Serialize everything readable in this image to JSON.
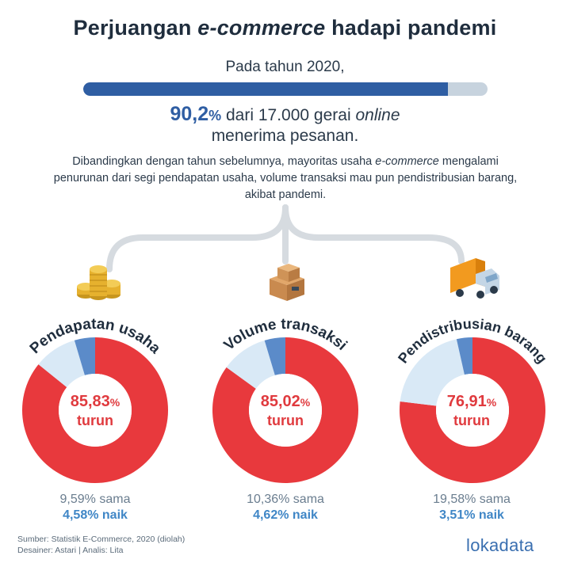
{
  "header": {
    "title_part1": "Perjuangan",
    "title_italic": "e-commerce",
    "title_part2": "hadapi pandemi"
  },
  "intro": {
    "year_text": "Pada tahun 2020,",
    "progress_percent": 90.2,
    "stat_value": "90,2",
    "stat_unit": "%",
    "stat_text": "dari 17.000 gerai",
    "stat_italic": "online",
    "stat_line2": "menerima pesanan."
  },
  "description": {
    "part1": "Dibandingkan dengan tahun sebelumnya, mayoritas usaha",
    "italic": "e-commerce",
    "part2": "mengalami penurunan dari segi pendapatan usaha, volume transaksi mau pun pendistribusian barang, akibat pandemi."
  },
  "colors": {
    "turun": "#e8393d",
    "sama": "#d9e9f6",
    "naik": "#5b8bc9",
    "dark_blue": "#2f5ea3",
    "connector": "#d6dbe0"
  },
  "chart_data": [
    {
      "type": "pie",
      "title": "Pendapatan usaha",
      "icon": "coins-icon",
      "center_value": "85,83",
      "center_unit": "%",
      "center_label": "turun",
      "slices": [
        {
          "label": "turun",
          "value": 85.83
        },
        {
          "label": "sama",
          "value": 9.59
        },
        {
          "label": "naik",
          "value": 4.58
        }
      ],
      "sama_text": "9,59% sama",
      "naik_text": "4,58% naik"
    },
    {
      "type": "pie",
      "title": "Volume transaksi",
      "icon": "boxes-icon",
      "center_value": "85,02",
      "center_unit": "%",
      "center_label": "turun",
      "slices": [
        {
          "label": "turun",
          "value": 85.02
        },
        {
          "label": "sama",
          "value": 10.36
        },
        {
          "label": "naik",
          "value": 4.62
        }
      ],
      "sama_text": "10,36% sama",
      "naik_text": "4,62% naik"
    },
    {
      "type": "pie",
      "title": "Pendistribusian barang",
      "icon": "truck-icon",
      "center_value": "76,91",
      "center_unit": "%",
      "center_label": "turun",
      "slices": [
        {
          "label": "turun",
          "value": 76.91
        },
        {
          "label": "sama",
          "value": 19.58
        },
        {
          "label": "naik",
          "value": 3.51
        }
      ],
      "sama_text": "19,58% sama",
      "naik_text": "3,51% naik"
    }
  ],
  "footer": {
    "source": "Sumber: Statistik E-Commerce, 2020 (diolah)",
    "credits": "Desainer: Astari | Analis: Lita",
    "logo": "lokadata"
  }
}
